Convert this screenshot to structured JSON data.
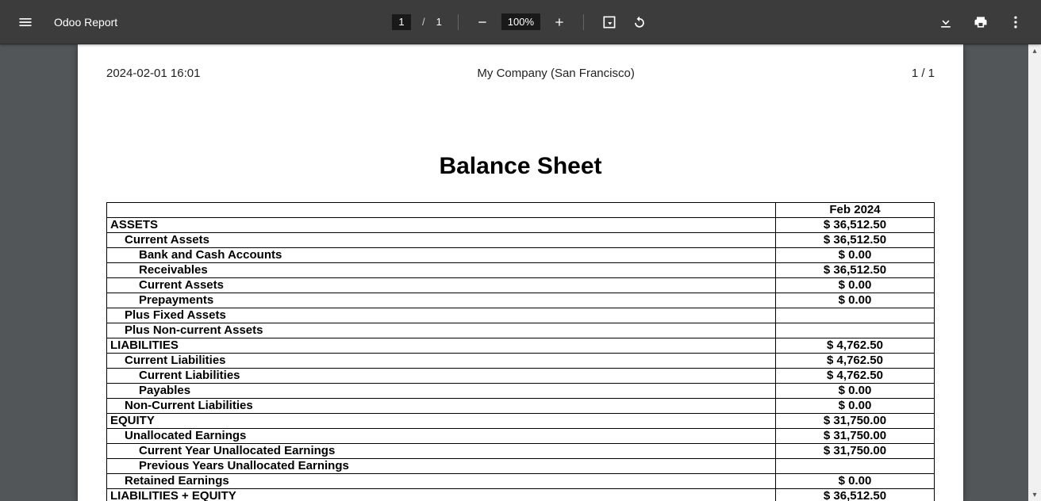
{
  "toolbar": {
    "title": "Odoo Report",
    "page_current": "1",
    "page_sep": "/",
    "page_total": "1",
    "zoom": "100%"
  },
  "header": {
    "timestamp": "2024-02-01 16:01",
    "company": "My Company (San Francisco)",
    "page_indicator": "1  /  1"
  },
  "doc_title": "Balance Sheet",
  "period_label": "Feb 2024",
  "rows": [
    {
      "label": "ASSETS",
      "value": "$ 36,512.50",
      "indent": 0
    },
    {
      "label": "Current Assets",
      "value": "$ 36,512.50",
      "indent": 1
    },
    {
      "label": "Bank and Cash Accounts",
      "value": "$ 0.00",
      "indent": 2
    },
    {
      "label": "Receivables",
      "value": "$ 36,512.50",
      "indent": 2
    },
    {
      "label": "Current Assets",
      "value": "$ 0.00",
      "indent": 2
    },
    {
      "label": "Prepayments",
      "value": "$ 0.00",
      "indent": 2
    },
    {
      "label": "Plus Fixed Assets",
      "value": "",
      "indent": 1
    },
    {
      "label": "Plus Non-current Assets",
      "value": "",
      "indent": 1
    },
    {
      "label": "LIABILITIES",
      "value": "$ 4,762.50",
      "indent": 0
    },
    {
      "label": "Current Liabilities",
      "value": "$ 4,762.50",
      "indent": 1
    },
    {
      "label": "Current Liabilities",
      "value": "$ 4,762.50",
      "indent": 2
    },
    {
      "label": "Payables",
      "value": "$ 0.00",
      "indent": 2
    },
    {
      "label": "Non-Current Liabilities",
      "value": "$ 0.00",
      "indent": 1
    },
    {
      "label": "EQUITY",
      "value": "$ 31,750.00",
      "indent": 0
    },
    {
      "label": "Unallocated Earnings",
      "value": "$ 31,750.00",
      "indent": 1
    },
    {
      "label": "Current Year Unallocated Earnings",
      "value": "$ 31,750.00",
      "indent": 2
    },
    {
      "label": "Previous Years Unallocated Earnings",
      "value": "",
      "indent": 2
    },
    {
      "label": "Retained Earnings",
      "value": "$ 0.00",
      "indent": 1
    },
    {
      "label": "LIABILITIES + EQUITY",
      "value": "$ 36,512.50",
      "indent": 0
    }
  ]
}
